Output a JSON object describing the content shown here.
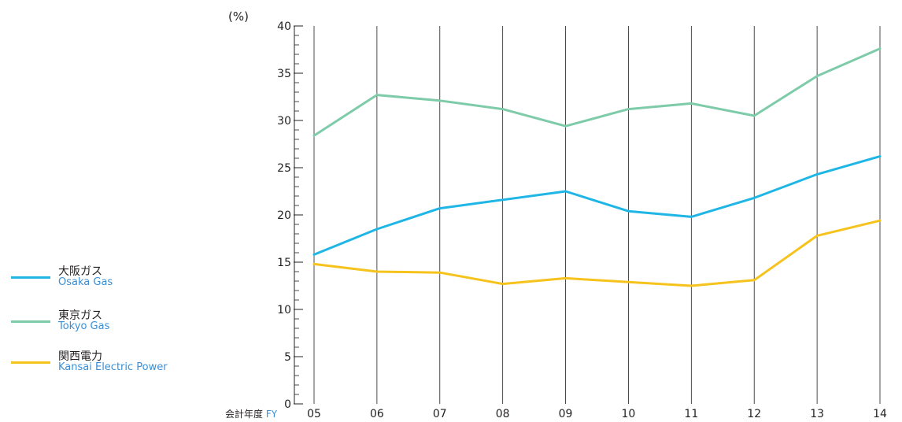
{
  "chart_data": {
    "type": "line",
    "y_unit_label": "(%)",
    "x_axis_label_jp": "会計年度",
    "x_axis_label_en": "FY",
    "categories": [
      "05",
      "06",
      "07",
      "08",
      "09",
      "10",
      "11",
      "12",
      "13",
      "14"
    ],
    "ylim": [
      0,
      40
    ],
    "yticks": [
      0,
      5,
      10,
      15,
      20,
      25,
      30,
      35,
      40
    ],
    "grid": "vertical",
    "legend_placement": "left",
    "series": [
      {
        "name_jp": "大阪ガス",
        "name_en": "Osaka Gas",
        "color": "#1fb6e6",
        "values": [
          15.8,
          18.5,
          20.7,
          21.6,
          22.5,
          20.4,
          19.8,
          21.8,
          24.3,
          26.2
        ]
      },
      {
        "name_jp": "東京ガス",
        "name_en": "Tokyo Gas",
        "color": "#7ecba9",
        "values": [
          28.4,
          32.7,
          32.1,
          31.2,
          29.4,
          31.2,
          31.8,
          30.5,
          34.7,
          37.6
        ]
      },
      {
        "name_jp": "関西電力",
        "name_en": "Kansai Electric Power",
        "color": "#f6c21c",
        "values": [
          14.8,
          14.0,
          13.9,
          12.7,
          13.3,
          12.9,
          12.5,
          13.1,
          17.8,
          19.4
        ]
      }
    ]
  }
}
